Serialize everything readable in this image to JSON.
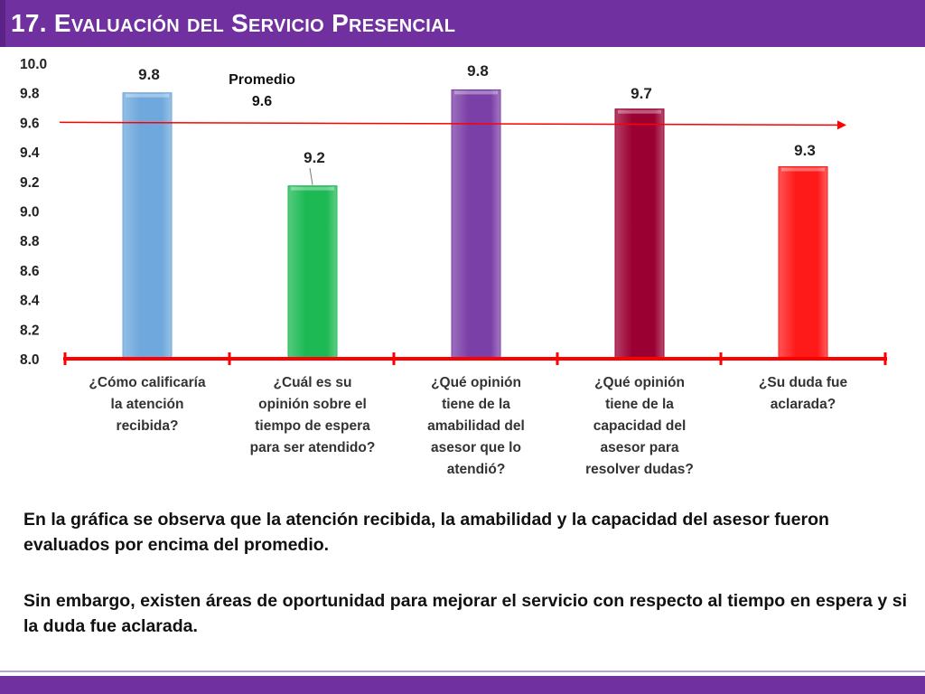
{
  "page": {
    "title": "17. Evaluación del Servicio Presencial",
    "paragraphs": [
      "En la gráfica se observa que la atención recibida, la amabilidad y la capacidad del asesor fueron evaluados por encima del promedio.",
      "Sin embargo, existen áreas de oportunidad para mejorar el servicio con respecto al tiempo en espera y si la duda fue aclarada."
    ]
  },
  "colors": {
    "title_bar": "#7030a0",
    "axis": "#ff0000",
    "average_line": "#ff0000"
  },
  "chart_data": {
    "type": "bar",
    "ylim": [
      8.0,
      10.0
    ],
    "yticks": [
      "10.0",
      "9.8",
      "9.6",
      "9.4",
      "9.2",
      "9.0",
      "8.8",
      "8.6",
      "8.4",
      "8.2",
      "8.0"
    ],
    "categories": [
      "¿Cómo calificaría la atención recibida?",
      "¿Cuál es su opinión sobre el tiempo de espera para ser atendido?",
      "¿Qué opinión tiene de la amabilidad del asesor que lo atendió?",
      "¿Qué opinión tiene de la capacidad del asesor para resolver dudas?",
      "¿Su duda fue aclarada?"
    ],
    "category_lines": [
      [
        "¿Cómo calificaría",
        "la atención",
        "recibida?"
      ],
      [
        "¿Cuál es su",
        "opinión sobre el",
        "tiempo de espera",
        "para ser atendido?"
      ],
      [
        "¿Qué opinión",
        "tiene de la",
        "amabilidad del",
        "asesor que lo",
        "atendió?"
      ],
      [
        "¿Qué opinión",
        "tiene de la",
        "capacidad del",
        "asesor para",
        "resolver dudas?"
      ],
      [
        "¿Su duda fue",
        "aclarada?"
      ]
    ],
    "values": [
      9.8,
      9.17,
      9.82,
      9.69,
      9.3
    ],
    "data_labels": [
      "9.8",
      "9.2",
      "9.8",
      "9.7",
      "9.3"
    ],
    "bar_colors": [
      "#6fa8dc",
      "#1db954",
      "#7b3fa8",
      "#9b0033",
      "#ff1a1a"
    ],
    "average": {
      "label_line1": "Promedio",
      "label_line2": "9.6",
      "value": 9.6
    },
    "grid": false,
    "legend": "none"
  }
}
